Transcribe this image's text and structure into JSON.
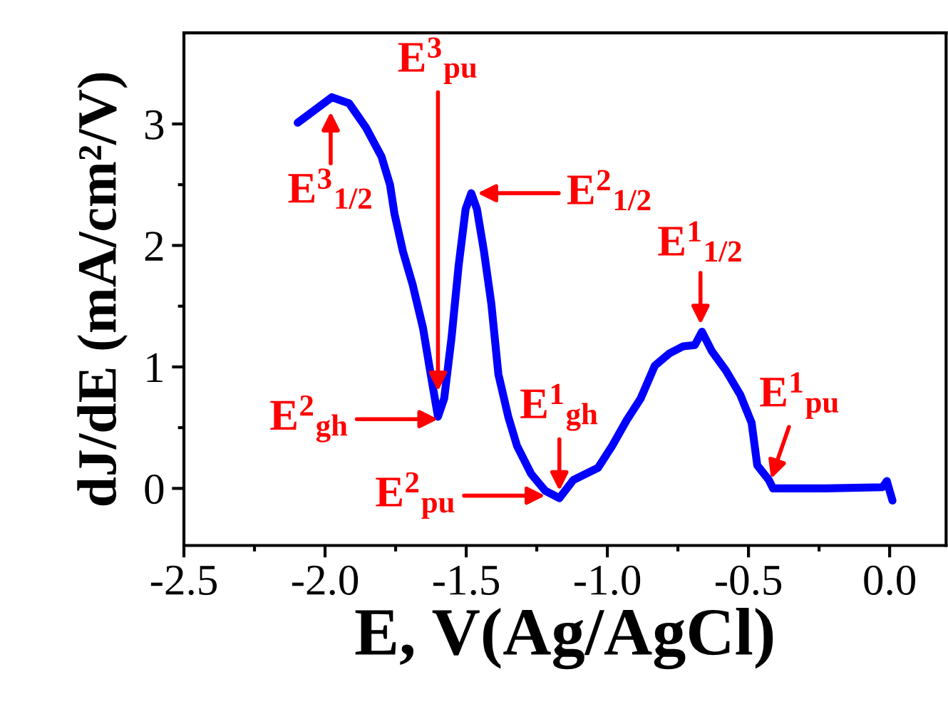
{
  "chart_data": {
    "type": "line",
    "xlabel": "E, V(Ag/AgCl)",
    "ylabel": "dJ/dE (mA/cm²/V)",
    "xlim": [
      -2.5,
      0.2
    ],
    "ylim": [
      -0.47,
      3.75
    ],
    "xticks": [
      {
        "value": -2.5,
        "label": "-2.5"
      },
      {
        "value": -2.0,
        "label": "-2.0"
      },
      {
        "value": -1.5,
        "label": "-1.5"
      },
      {
        "value": -1.0,
        "label": "-1.0"
      },
      {
        "value": -0.5,
        "label": "-0.5"
      },
      {
        "value": 0.0,
        "label": "0.0"
      }
    ],
    "yticks": [
      0,
      1,
      2,
      3
    ],
    "marker": "none",
    "line_style": "solid",
    "series": [
      {
        "color": "#0000ff",
        "x": [
          -2.097,
          -1.976,
          -1.915,
          -1.855,
          -1.8,
          -1.77,
          -1.754,
          -1.724,
          -1.69,
          -1.653,
          -1.628,
          -1.6,
          -1.578,
          -1.552,
          -1.527,
          -1.502,
          -1.482,
          -1.462,
          -1.437,
          -1.411,
          -1.386,
          -1.351,
          -1.32,
          -1.27,
          -1.22,
          -1.17,
          -1.12,
          -1.033,
          -0.983,
          -0.932,
          -0.882,
          -0.832,
          -0.781,
          -0.731,
          -0.69,
          -0.665,
          -0.63,
          -0.58,
          -0.529,
          -0.489,
          -0.469,
          -0.428,
          -0.413,
          -0.227,
          -0.025,
          -0.01,
          0.01
        ],
        "values": [
          3.01,
          3.22,
          3.17,
          2.97,
          2.73,
          2.5,
          2.26,
          1.95,
          1.68,
          1.32,
          0.97,
          0.59,
          0.74,
          1.24,
          1.83,
          2.3,
          2.43,
          2.3,
          1.95,
          1.52,
          0.94,
          0.59,
          0.35,
          0.12,
          -0.02,
          -0.08,
          0.07,
          0.17,
          0.35,
          0.56,
          0.74,
          1.01,
          1.11,
          1.17,
          1.18,
          1.29,
          1.13,
          0.97,
          0.77,
          0.54,
          0.19,
          0.07,
          0.0,
          0.0,
          0.01,
          0.06,
          -0.1
        ]
      }
    ],
    "annotations": [
      {
        "text": "E$^{3}$$_{1/2}$",
        "x": -1.98,
        "y": 3.1
      },
      {
        "text": "E$^{3}$$_{pu}$",
        "x": -1.6,
        "y": 0.8
      },
      {
        "text": "E$^{2}$$_{1/2}$",
        "x": -1.46,
        "y": 2.43
      },
      {
        "text": "E$^{2}$$_{gh}$",
        "x": -1.6,
        "y": 0.57
      },
      {
        "text": "E$^{2}$$_{pu}$",
        "x": -1.22,
        "y": -0.06
      },
      {
        "text": "E$^{1}$$_{gh}$",
        "x": -1.17,
        "y": -0.02
      },
      {
        "text": "E$^{1}$$_{1/2}$",
        "x": -0.67,
        "y": 1.35
      },
      {
        "text": "E$^{1}$$_{pu}$",
        "x": -0.42,
        "y": 0.08
      }
    ]
  }
}
